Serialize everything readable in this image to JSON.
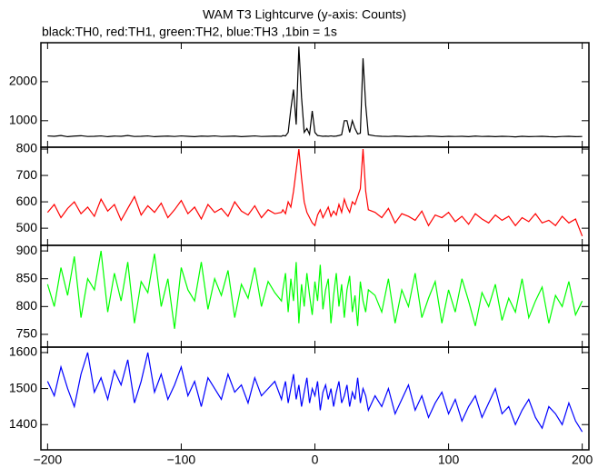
{
  "chart_data": {
    "type": "line",
    "title": "WAM T3 Lightcurve (y-axis: Counts)",
    "subtitle": "black:TH0, red:TH1, green:TH2, blue:TH3 ,1bin = 1s",
    "xlim": [
      -205,
      205
    ],
    "xticks": [
      {
        "value": -200,
        "label": "−200"
      },
      {
        "value": -100,
        "label": "−100"
      },
      0,
      100,
      200
    ],
    "x": [
      -200,
      -195,
      -190,
      -185,
      -180,
      -175,
      -170,
      -165,
      -160,
      -155,
      -150,
      -145,
      -140,
      -135,
      -130,
      -125,
      -120,
      -115,
      -110,
      -105,
      -100,
      -95,
      -90,
      -85,
      -80,
      -75,
      -70,
      -65,
      -60,
      -55,
      -50,
      -45,
      -40,
      -35,
      -30,
      -25,
      -24,
      -22,
      -20,
      -18,
      -16,
      -14,
      -12,
      -10,
      -8,
      -6,
      -4,
      -2,
      0,
      2,
      4,
      6,
      8,
      10,
      12,
      14,
      16,
      18,
      20,
      22,
      24,
      26,
      28,
      30,
      32,
      34,
      36,
      38,
      40,
      45,
      50,
      55,
      60,
      65,
      70,
      75,
      80,
      85,
      90,
      95,
      100,
      105,
      110,
      115,
      120,
      125,
      130,
      135,
      140,
      145,
      150,
      155,
      160,
      165,
      170,
      175,
      180,
      185,
      190,
      195,
      200
    ],
    "panels": [
      {
        "ylim": [
          320,
          3000
        ],
        "yticks": [
          1000,
          2000
        ],
        "series": [
          {
            "color": "#000000",
            "values": [
              610,
              600,
              620,
              590,
              605,
              615,
              595,
              600,
              610,
              590,
              605,
              600,
              620,
              595,
              600,
              610,
              590,
              600,
              605,
              595,
              610,
              600,
              590,
              605,
              600,
              610,
              595,
              600,
              605,
              590,
              600,
              610,
              595,
              600,
              605,
              600,
              620,
              610,
              700,
              1300,
              1800,
              900,
              2900,
              1600,
              700,
              800,
              650,
              1250,
              700,
              620,
              610,
              600,
              605,
              600,
              610,
              600,
              605,
              620,
              640,
              1000,
              1000,
              700,
              1000,
              800,
              660,
              680,
              2600,
              1400,
              640,
              610,
              600,
              595,
              605,
              600,
              590,
              600,
              595,
              605,
              600,
              590,
              600,
              595,
              600,
              590,
              605,
              595,
              600,
              590,
              600,
              595,
              585,
              600,
              590,
              595,
              600,
              590,
              585,
              595,
              600,
              590,
              595
            ]
          }
        ]
      },
      {
        "ylim": [
          435,
          807
        ],
        "yticks": [
          500,
          600,
          700,
          800
        ],
        "series": [
          {
            "color": "#ff0000",
            "values": [
              560,
              590,
              540,
              575,
              600,
              555,
              580,
              545,
              610,
              565,
              590,
              530,
              575,
              620,
              550,
              585,
              560,
              595,
              540,
              570,
              605,
              555,
              580,
              535,
              590,
              560,
              575,
              545,
              600,
              565,
              550,
              585,
              540,
              570,
              555,
              560,
              570,
              555,
              600,
              580,
              640,
              720,
              800,
              690,
              600,
              560,
              540,
              520,
              510,
              550,
              570,
              540,
              560,
              580,
              545,
              565,
              550,
              590,
              560,
              610,
              580,
              560,
              600,
              590,
              620,
              650,
              800,
              640,
              570,
              560,
              540,
              575,
              520,
              555,
              545,
              530,
              565,
              510,
              550,
              540,
              560,
              525,
              545,
              515,
              555,
              535,
              520,
              550,
              530,
              545,
              510,
              540,
              525,
              555,
              520,
              530,
              510,
              545,
              520,
              535,
              470
            ]
          }
        ]
      },
      {
        "ylim": [
          727,
          910
        ],
        "yticks": [
          750,
          800,
          850,
          900
        ],
        "series": [
          {
            "color": "#00ff00",
            "values": [
              840,
              800,
              870,
              820,
              890,
              780,
              850,
              830,
              900,
              790,
              860,
              810,
              880,
              770,
              845,
              825,
              895,
              800,
              850,
              760,
              870,
              830,
              810,
              880,
              795,
              850,
              820,
              865,
              780,
              840,
              815,
              870,
              800,
              845,
              825,
              810,
              830,
              860,
              790,
              850,
              810,
              880,
              770,
              840,
              800,
              860,
              820,
              785,
              845,
              810,
              875,
              795,
              830,
              850,
              770,
              820,
              860,
              800,
              840,
              780,
              830,
              855,
              790,
              820,
              765,
              845,
              810,
              790,
              830,
              820,
              790,
              850,
              770,
              830,
              800,
              860,
              780,
              815,
              845,
              770,
              830,
              790,
              850,
              810,
              765,
              825,
              800,
              840,
              775,
              815,
              790,
              850,
              780,
              810,
              835,
              770,
              820,
              800,
              845,
              785,
              810
            ]
          }
        ]
      },
      {
        "ylim": [
          1330,
          1615
        ],
        "yticks": [
          1400,
          1500,
          1600
        ],
        "series": [
          {
            "color": "#0000ff",
            "values": [
              1520,
              1480,
              1560,
              1500,
              1450,
              1540,
              1600,
              1490,
              1530,
              1470,
              1550,
              1510,
              1580,
              1460,
              1520,
              1600,
              1490,
              1540,
              1470,
              1510,
              1560,
              1480,
              1520,
              1450,
              1530,
              1500,
              1470,
              1540,
              1490,
              1510,
              1460,
              1530,
              1480,
              1500,
              1520,
              1470,
              1490,
              1520,
              1460,
              1500,
              1540,
              1470,
              1510,
              1450,
              1490,
              1530,
              1460,
              1500,
              1480,
              1520,
              1440,
              1490,
              1510,
              1470,
              1500,
              1450,
              1490,
              1520,
              1460,
              1480,
              1510,
              1450,
              1490,
              1470,
              1530,
              1460,
              1500,
              1480,
              1440,
              1480,
              1450,
              1500,
              1430,
              1470,
              1510,
              1440,
              1480,
              1420,
              1460,
              1490,
              1430,
              1470,
              1410,
              1450,
              1480,
              1420,
              1460,
              1500,
              1430,
              1450,
              1400,
              1440,
              1470,
              1420,
              1390,
              1450,
              1430,
              1400,
              1460,
              1410,
              1380
            ]
          }
        ]
      }
    ]
  }
}
